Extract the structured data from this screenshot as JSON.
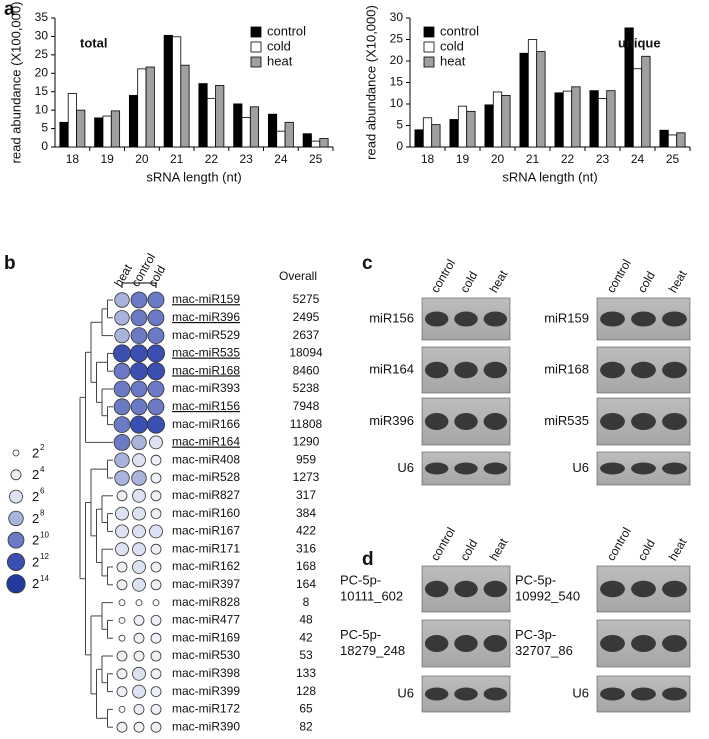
{
  "chart_data": [
    {
      "type": "bar",
      "panel": "a",
      "title": "total",
      "ylabel": "read abundance (X100,000)",
      "xlabel": "sRNA length (nt)",
      "categories": [
        "18",
        "19",
        "20",
        "21",
        "22",
        "23",
        "24",
        "25"
      ],
      "series": [
        {
          "name": "control",
          "color": "#000000",
          "values": [
            6.7,
            7.9,
            14,
            30.3,
            17.2,
            11.7,
            8.9,
            3.6
          ]
        },
        {
          "name": "cold",
          "color": "#ffffff",
          "values": [
            14.5,
            8.4,
            21.2,
            29.9,
            13.2,
            8,
            4.3,
            1.6
          ]
        },
        {
          "name": "heat",
          "color": "#a0a0a0",
          "values": [
            10,
            9.8,
            21.7,
            22.2,
            16.7,
            10.9,
            6.7,
            2.3
          ]
        }
      ],
      "ylim": [
        0,
        35
      ],
      "yticks": [
        0,
        5,
        10,
        15,
        20,
        25,
        30,
        35
      ],
      "legend": "upper right"
    },
    {
      "type": "bar",
      "title": "unique",
      "ylabel": "read abundance (X10,000)",
      "xlabel": "sRNA length (nt)",
      "categories": [
        "18",
        "19",
        "20",
        "21",
        "22",
        "23",
        "24",
        "25"
      ],
      "series": [
        {
          "name": "control",
          "color": "#000000",
          "values": [
            4,
            6.4,
            9.8,
            21.8,
            12.6,
            13.1,
            27.7,
            3.9
          ]
        },
        {
          "name": "cold",
          "color": "#ffffff",
          "values": [
            6.8,
            9.5,
            12.8,
            25,
            13,
            11.3,
            18.2,
            2.8
          ]
        },
        {
          "name": "heat",
          "color": "#a0a0a0",
          "values": [
            5.2,
            8.3,
            12,
            22.2,
            14,
            13.1,
            21.1,
            3.3
          ]
        }
      ],
      "ylim": [
        0,
        30
      ],
      "yticks": [
        0,
        5,
        10,
        15,
        20,
        25,
        30
      ],
      "legend": "upper left"
    }
  ],
  "expression": {
    "panel": "b",
    "conditions": [
      "heat",
      "control",
      "cold"
    ],
    "overall_header": "Overall",
    "rows": [
      {
        "name": "mac-miR159",
        "underline": true,
        "overall": 5275,
        "levels": [
          8,
          10,
          10
        ]
      },
      {
        "name": "mac-miR396",
        "underline": true,
        "overall": 2495,
        "levels": [
          8,
          10,
          10
        ]
      },
      {
        "name": "mac-miR529",
        "underline": false,
        "overall": 2637,
        "levels": [
          8,
          10,
          10
        ]
      },
      {
        "name": "mac-miR535",
        "underline": true,
        "overall": 18094,
        "levels": [
          12,
          12,
          12
        ]
      },
      {
        "name": "mac-miR168",
        "underline": true,
        "overall": 8460,
        "levels": [
          10,
          12,
          12
        ]
      },
      {
        "name": "mac-miR393",
        "underline": false,
        "overall": 5238,
        "levels": [
          10,
          10,
          10
        ]
      },
      {
        "name": "mac-miR156",
        "underline": true,
        "overall": 7948,
        "levels": [
          10,
          10,
          10
        ]
      },
      {
        "name": "mac-miR166",
        "underline": false,
        "overall": 11808,
        "levels": [
          10,
          12,
          12
        ]
      },
      {
        "name": "mac-miR164",
        "underline": true,
        "overall": 1290,
        "levels": [
          10,
          8,
          6
        ]
      },
      {
        "name": "mac-miR408",
        "underline": false,
        "overall": 959,
        "levels": [
          8,
          6,
          4
        ]
      },
      {
        "name": "mac-miR528",
        "underline": false,
        "overall": 1273,
        "levels": [
          8,
          8,
          4
        ]
      },
      {
        "name": "mac-miR827",
        "underline": false,
        "overall": 317,
        "levels": [
          4,
          6,
          4
        ]
      },
      {
        "name": "mac-miR160",
        "underline": false,
        "overall": 384,
        "levels": [
          6,
          6,
          4
        ]
      },
      {
        "name": "mac-miR167",
        "underline": false,
        "overall": 422,
        "levels": [
          6,
          6,
          6
        ]
      },
      {
        "name": "mac-miR171",
        "underline": false,
        "overall": 316,
        "levels": [
          6,
          6,
          4
        ]
      },
      {
        "name": "mac-miR162",
        "underline": false,
        "overall": 168,
        "levels": [
          4,
          6,
          4
        ]
      },
      {
        "name": "mac-miR397",
        "underline": false,
        "overall": 164,
        "levels": [
          4,
          6,
          4
        ]
      },
      {
        "name": "mac-miR828",
        "underline": false,
        "overall": 8,
        "levels": [
          2,
          2,
          2
        ]
      },
      {
        "name": "mac-miR477",
        "underline": false,
        "overall": 48,
        "levels": [
          2,
          4,
          4
        ]
      },
      {
        "name": "mac-miR169",
        "underline": false,
        "overall": 42,
        "levels": [
          2,
          4,
          4
        ]
      },
      {
        "name": "mac-miR530",
        "underline": false,
        "overall": 53,
        "levels": [
          4,
          4,
          4
        ]
      },
      {
        "name": "mac-miR398",
        "underline": false,
        "overall": 133,
        "levels": [
          4,
          6,
          4
        ]
      },
      {
        "name": "mac-miR399",
        "underline": false,
        "overall": 128,
        "levels": [
          4,
          6,
          4
        ]
      },
      {
        "name": "mac-miR172",
        "underline": false,
        "overall": 65,
        "levels": [
          2,
          4,
          4
        ]
      },
      {
        "name": "mac-miR390",
        "underline": false,
        "overall": 82,
        "levels": [
          4,
          4,
          4
        ]
      }
    ],
    "legend": {
      "base": "2",
      "exponents": [
        2,
        4,
        6,
        8,
        10,
        12,
        14
      ]
    }
  },
  "blots_c": {
    "panel": "c",
    "lanes": [
      "control",
      "cold",
      "heat"
    ],
    "columns": [
      {
        "probes": [
          [
            "miR156"
          ],
          [
            "miR164"
          ],
          [
            "miR396"
          ],
          [
            "U6"
          ]
        ]
      },
      {
        "probes": [
          [
            "miR159"
          ],
          [
            "miR168"
          ],
          [
            "miR535"
          ],
          [
            "U6"
          ]
        ]
      }
    ]
  },
  "blots_d": {
    "panel": "d",
    "lanes": [
      "control",
      "cold",
      "heat"
    ],
    "columns": [
      {
        "probes": [
          [
            "PC-5p-",
            "10111_602"
          ],
          [
            "PC-5p-",
            "18279_248"
          ],
          [
            "U6"
          ]
        ]
      },
      {
        "probes": [
          [
            "PC-5p-",
            "10992_540"
          ],
          [
            "PC-3p-",
            "32707_86"
          ],
          [
            "U6"
          ]
        ]
      }
    ]
  }
}
